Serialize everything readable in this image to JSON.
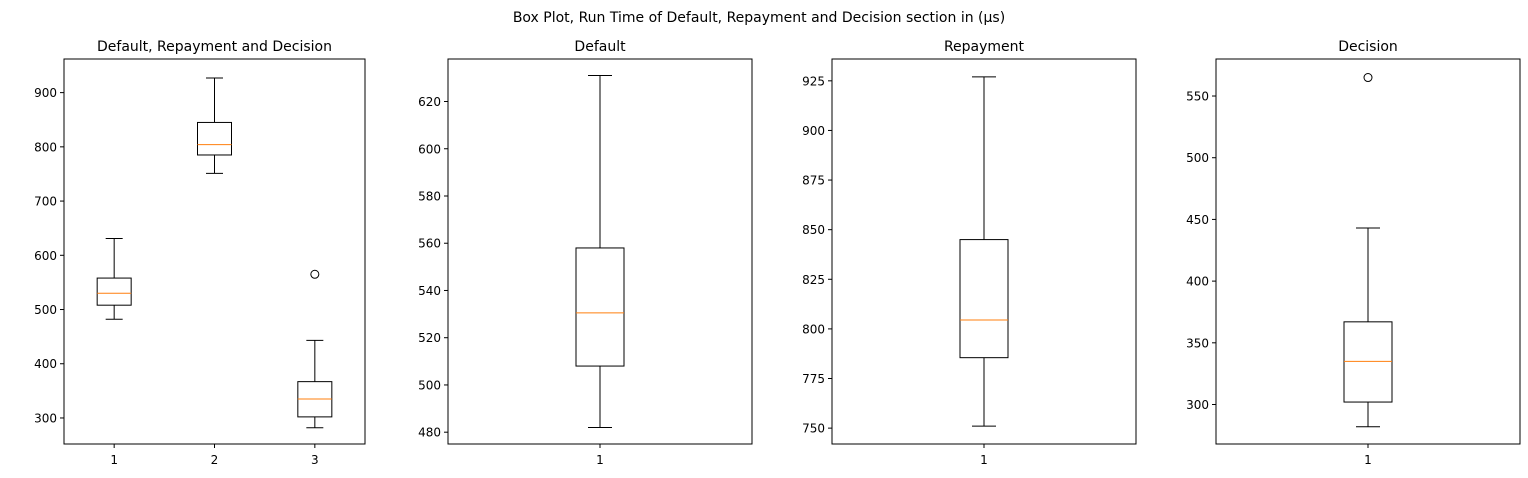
{
  "figure": {
    "suptitle": "Box Plot, Run Time of Default, Repayment and Decision section in (µs)"
  },
  "colors": {
    "box": "#000000",
    "median": "#ff7f0e",
    "background": "#ffffff"
  },
  "chart_data": [
    {
      "type": "boxplot",
      "title": "Default, Repayment and Decision",
      "categories": [
        "1",
        "2",
        "3"
      ],
      "ylim": [
        252,
        962
      ],
      "yticks": [
        300,
        400,
        500,
        600,
        700,
        800,
        900
      ],
      "boxes": [
        {
          "label": "1",
          "whislo": 482,
          "q1": 508,
          "med": 530,
          "q3": 558,
          "whishi": 631,
          "fliers": []
        },
        {
          "label": "2",
          "whislo": 751,
          "q1": 785,
          "med": 804,
          "q3": 845,
          "whishi": 927,
          "fliers": []
        },
        {
          "label": "3",
          "whislo": 282,
          "q1": 302,
          "med": 335,
          "q3": 367,
          "whishi": 443,
          "fliers": [
            565
          ]
        }
      ]
    },
    {
      "type": "boxplot",
      "title": "Default",
      "categories": [
        "1"
      ],
      "ylim": [
        475,
        638
      ],
      "yticks": [
        480,
        500,
        520,
        540,
        560,
        580,
        600,
        620
      ],
      "boxes": [
        {
          "label": "1",
          "whislo": 482,
          "q1": 508,
          "med": 530.5,
          "q3": 558,
          "whishi": 631,
          "fliers": []
        }
      ]
    },
    {
      "type": "boxplot",
      "title": "Repayment",
      "categories": [
        "1"
      ],
      "ylim": [
        742,
        936
      ],
      "yticks": [
        750,
        775,
        800,
        825,
        850,
        875,
        900,
        925
      ],
      "boxes": [
        {
          "label": "1",
          "whislo": 751,
          "q1": 785.5,
          "med": 804.5,
          "q3": 845,
          "whishi": 927,
          "fliers": []
        }
      ]
    },
    {
      "type": "boxplot",
      "title": "Decision",
      "categories": [
        "1"
      ],
      "ylim": [
        268,
        580
      ],
      "yticks": [
        300,
        350,
        400,
        450,
        500,
        550
      ],
      "boxes": [
        {
          "label": "1",
          "whislo": 282,
          "q1": 302,
          "med": 335,
          "q3": 367,
          "whishi": 443,
          "fliers": [
            565
          ]
        }
      ]
    }
  ]
}
